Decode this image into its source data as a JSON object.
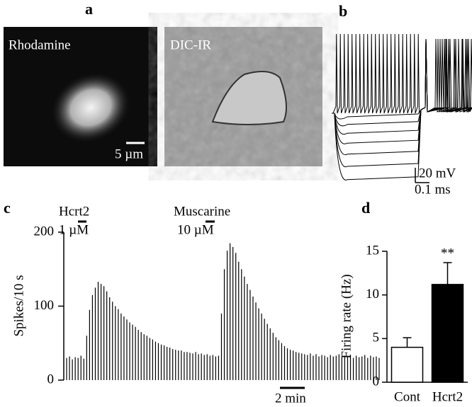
{
  "panels": {
    "a": {
      "label": "a",
      "images": [
        {
          "label": "Rhodamine",
          "scale": "5 µm"
        },
        {
          "label": "DIC-IR"
        }
      ]
    },
    "b": {
      "label": "b",
      "scale_y": "20 mV",
      "scale_x": "0.1 ms"
    },
    "c": {
      "label": "c"
    },
    "d": {
      "label": "d"
    }
  },
  "chart_data": [
    {
      "type": "bar",
      "ylabel": "Spikes/10 s",
      "color": "#000000",
      "annotations": [
        "Hcrt2",
        "1 µM",
        "Muscarine",
        "10 µM",
        "2 min"
      ],
      "values": [
        30,
        32,
        28,
        31,
        30,
        33,
        29,
        60,
        95,
        115,
        125,
        133,
        130,
        127,
        120,
        112,
        106,
        100,
        96,
        90,
        86,
        82,
        78,
        75,
        72,
        68,
        65,
        62,
        60,
        57,
        55,
        52,
        50,
        48,
        47,
        45,
        44,
        42,
        41,
        40,
        40,
        38,
        38,
        37,
        36,
        38,
        35,
        36,
        34,
        35,
        33,
        34,
        32,
        33,
        90,
        150,
        175,
        185,
        180,
        172,
        160,
        150,
        140,
        130,
        122,
        113,
        105,
        97,
        90,
        83,
        76,
        70,
        64,
        58,
        54,
        50,
        46,
        43,
        41,
        40,
        38,
        37,
        36,
        35,
        34,
        36,
        33,
        35,
        32,
        34,
        33,
        31,
        34,
        32,
        33,
        35,
        31,
        33,
        32,
        34,
        30,
        33,
        31,
        32,
        34,
        30,
        33,
        31,
        32,
        30
      ],
      "ylim": [
        0,
        200
      ],
      "yticks": [
        0,
        100,
        200
      ]
    },
    {
      "type": "bar",
      "ylabel": "Firing rate (Hz)",
      "categories": [
        "Cont",
        "Hcrt2"
      ],
      "values": [
        4,
        11.2
      ],
      "errors": [
        1.1,
        2.5
      ],
      "colors": [
        "#ffffff",
        "#000000"
      ],
      "annotations": [
        "**"
      ],
      "ylim": [
        0,
        15
      ],
      "yticks": [
        0,
        5,
        10,
        15
      ]
    }
  ]
}
